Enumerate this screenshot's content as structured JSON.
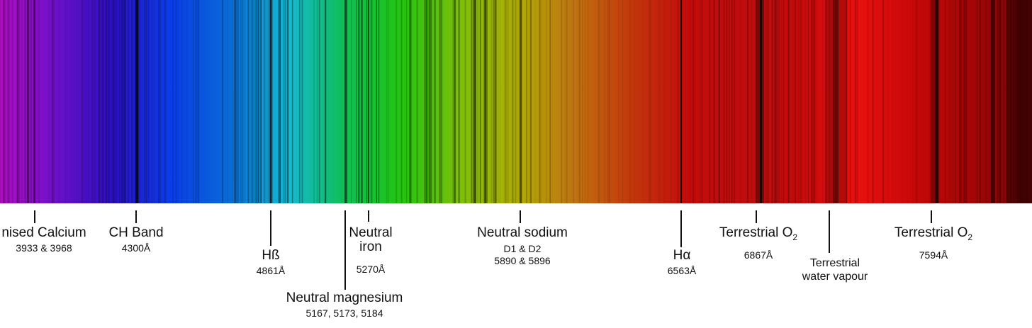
{
  "chart_data": {
    "type": "spectrum",
    "absorption_lines": [
      {
        "id": "calcium",
        "name": "nised Calcium",
        "sub": "",
        "wavelength": "3933 & 3968"
      },
      {
        "id": "ch-band",
        "name": "CH Band",
        "sub": "",
        "wavelength": "4300Å"
      },
      {
        "id": "h-beta",
        "name": "Hß",
        "sub": "",
        "wavelength": "4861Å"
      },
      {
        "id": "magnesium",
        "name": "Neutral magnesium",
        "sub": "",
        "wavelength": "5167, 5173, 5184"
      },
      {
        "id": "iron",
        "name": "Neutral\niron",
        "sub": "",
        "wavelength": "5270Å"
      },
      {
        "id": "sodium",
        "name": "Neutral sodium",
        "sub": "",
        "wavelength": "D1 & D2\n5890 & 5896"
      },
      {
        "id": "h-alpha",
        "name": "Hα",
        "sub": "",
        "wavelength": "6563Å"
      },
      {
        "id": "o2-a",
        "name": "Terrestrial O",
        "sub": "2",
        "wavelength": "6867Å"
      },
      {
        "id": "water",
        "name": "Terrestrial\nwater vapour",
        "sub": "",
        "wavelength": ""
      },
      {
        "id": "o2-b",
        "name": "Terrestrial O",
        "sub": "2",
        "wavelength": "7594Å"
      }
    ],
    "gradient_colors": [
      "#b20fc4",
      "#6a10c8",
      "#2a10c4",
      "#0a3ee8",
      "#0a6ad6",
      "#16b9d6",
      "#0fbe55",
      "#22c410",
      "#7cc00c",
      "#b0ad08",
      "#c07410",
      "#c2380c",
      "#c40c0c",
      "#c00c0c",
      "#c80c0c",
      "#e8100e",
      "#c40808",
      "#a20606",
      "#6a0404"
    ]
  }
}
